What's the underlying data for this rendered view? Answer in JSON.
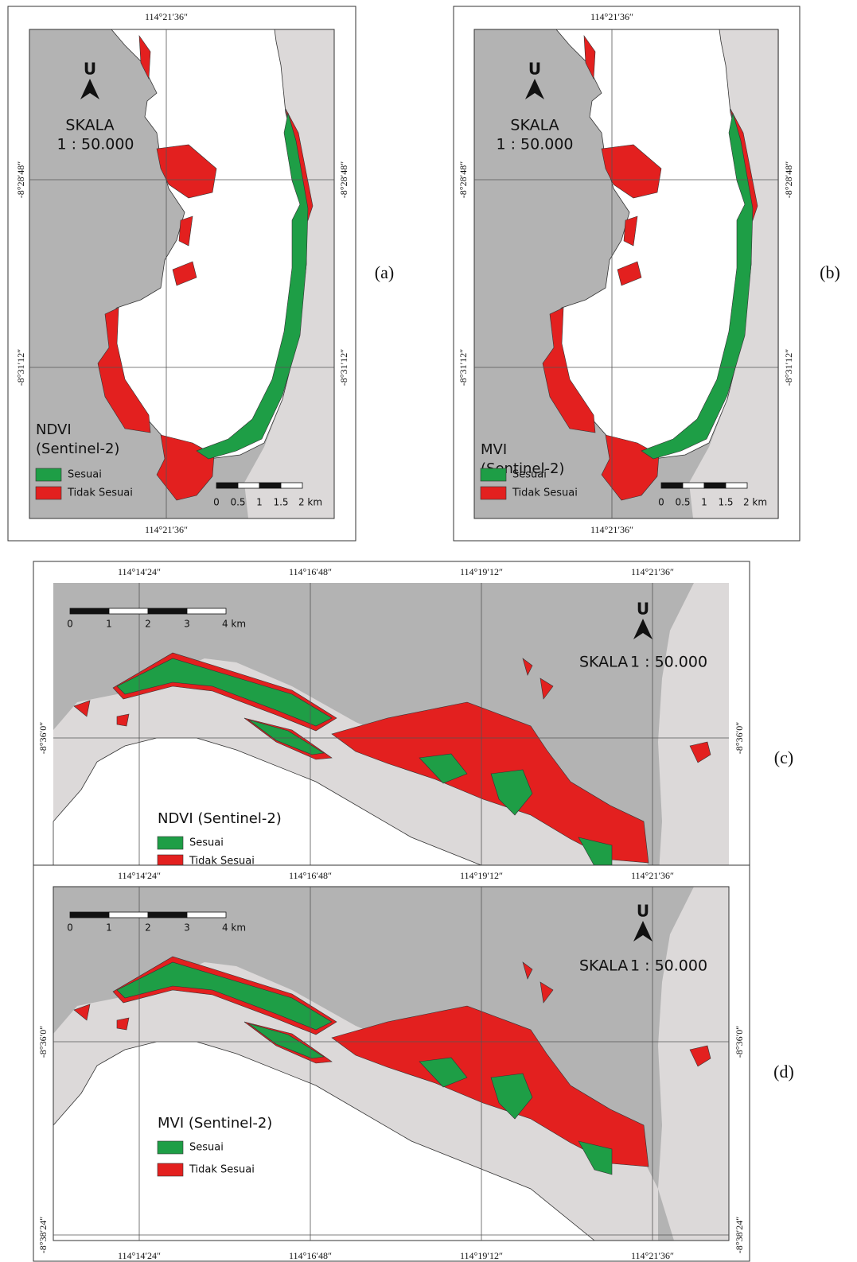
{
  "panels": [
    {
      "panel_label": "(a)",
      "top_labels": [
        "114°21′36″"
      ],
      "bottom_labels": [
        "114°21′36″"
      ],
      "left_labels": [
        "-8°28′48″",
        "-8°31′12″"
      ],
      "right_labels": [
        "-8°28′48″",
        "-8°31′12″"
      ],
      "north": "U",
      "scale_title": "SKALA",
      "scale_ratio": "1 : 50.000",
      "legend_title": [
        "NDVI",
        "(Sentinel-2)"
      ],
      "legend_items": [
        "Sesuai",
        "Tidak Sesuai"
      ],
      "scale_bar": [
        "0",
        "0.5",
        "1",
        "1.5",
        "2 km"
      ]
    },
    {
      "panel_label": "(b)",
      "top_labels": [
        "114°21′36″"
      ],
      "bottom_labels": [
        "114°21′36″"
      ],
      "left_labels": [
        "-8°28′48″",
        "-8°31′12″"
      ],
      "right_labels": [
        "-8°28′48″",
        "-8°31′12″"
      ],
      "north": "U",
      "scale_title": "SKALA",
      "scale_ratio": "1 : 50.000",
      "legend_title": [
        "MVI",
        "(Sentinel-2)"
      ],
      "legend_items": [
        "Sesuai",
        "Tidak Sesuai"
      ],
      "scale_bar": [
        "0",
        "0.5",
        "1",
        "1.5",
        "2 km"
      ]
    },
    {
      "panel_label": "(c)",
      "top_labels": [
        "114°14′24″",
        "114°16′48″",
        "114°19′12″",
        "114°21′36″"
      ],
      "left_labels": [
        "-8°36′0″"
      ],
      "right_labels": [
        "-8°36′0″"
      ],
      "north": "U",
      "scale_title": "SKALA",
      "scale_ratio": "1 : 50.000",
      "legend_title": [
        "NDVI (Sentinel-2)"
      ],
      "legend_items": [
        "Sesuai",
        "Tidak Sesuai"
      ],
      "scale_bar": [
        "0",
        "1",
        "2",
        "3",
        "4 km"
      ]
    },
    {
      "panel_label": "(d)",
      "top_labels": [
        "114°14′24″",
        "114°16′48″",
        "114°19′12″",
        "114°21′36″"
      ],
      "bottom_labels": [
        "114°14′24″",
        "114°16′48″",
        "114°19′12″",
        "114°21′36″"
      ],
      "left_labels": [
        "-8°36′0″",
        "-8°38′24″"
      ],
      "right_labels": [
        "-8°36′0″",
        "-8°38′24″"
      ],
      "north": "U",
      "scale_title": "SKALA",
      "scale_ratio": "1 : 50.000",
      "legend_title": [
        "MVI (Sentinel-2)"
      ],
      "legend_items": [
        "Sesuai",
        "Tidak Sesuai"
      ],
      "scale_bar": [
        "0",
        "1",
        "2",
        "3",
        "4 km"
      ]
    }
  ]
}
